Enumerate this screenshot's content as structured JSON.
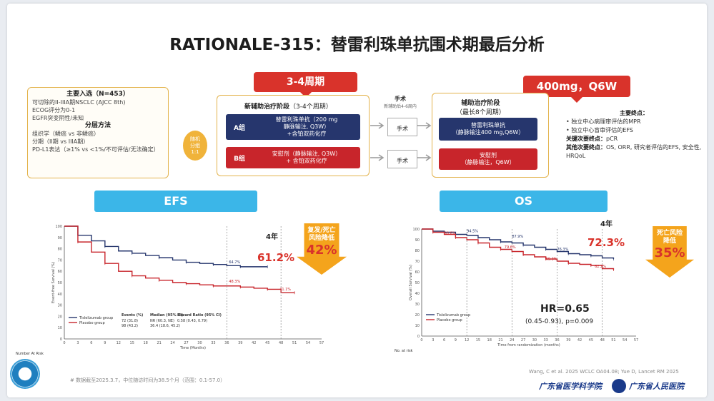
{
  "title": "RATIONALE-315：替雷利珠单抗围术期最后分析",
  "criteria": {
    "heading": "主要入选（N=453）",
    "items": [
      "可切除的II-IIIA期NSCLC (AJCC 8th)",
      "ECOG评分为0-1",
      "EGFR突变阴性/未知"
    ],
    "strat_heading": "分层方法",
    "strat_items": [
      "组织学（鳞癌 vs 非鳞癌）",
      "分期（II期 vs IIIA期）",
      "PD-L1表达（≥1% vs <1%/不可评估/无法确定）"
    ]
  },
  "randomize": "随机\n分组\n1:1",
  "neoadj": {
    "callout": "3-4周期",
    "title": "新辅助治疗阶段",
    "subtitle": "（3-4个周期）",
    "groupA_label": "A组",
    "groupA_text": "替雷利珠单抗（200 mg\n静脉输注, Q3W）\n+含铂双药化疗",
    "groupB_label": "B组",
    "groupB_text": "安慰剂（静脉输注, Q3W）\n+ 含铂双药化疗"
  },
  "surgery": {
    "title": "手术",
    "subtitle": "新辅助后4-6周内",
    "box": "手术"
  },
  "adj": {
    "callout": "400mg，Q6W",
    "title": "辅助治疗阶段",
    "subtitle": "（最长8个周期）",
    "groupA_text": "替雷利珠单抗\n（静脉输注400 mg,Q6W）",
    "groupB_text": "安慰剂\n（静脉输注，Q6W）"
  },
  "endpoints": {
    "primary_h": "主要终点：",
    "primary": [
      "独立中心病理审评估的MPR",
      "独立中心盲审评估的EFS"
    ],
    "key2_h": "关键次要终点：",
    "key2": "pCR",
    "other_h": "其他次要终点：",
    "other": "OS, ORR, 研究者评估的EFS, 安全性, HRQoL"
  },
  "efs": {
    "banner": "EFS",
    "year": "4年",
    "pct": "61.2%",
    "reduce_label": "复发/死亡\n风险降低",
    "reduce_value": "42%",
    "y_label": "Event-free Survival (%)",
    "x_label": "Time (Months)",
    "legend": [
      "Tislelizumab group",
      "Placebo group"
    ],
    "table_head": [
      "Events (%)",
      "Median (95% CI)",
      "Hazard Ratio (95% CI)"
    ],
    "row_t": [
      "72 (31.8)",
      "NR (60.3, NE)",
      "0.58 (0.43, 0.79)"
    ],
    "row_p": [
      "98 (43.2)",
      "36.4 (18.6, 45.2)",
      ""
    ],
    "risk_title": "Number At Risk",
    "labels": {
      "a": "64.7%",
      "b": "48.3%",
      "c": "41.1%"
    }
  },
  "os": {
    "banner": "OS",
    "year": "4年",
    "pct": "72.3%",
    "reduce_label": "死亡风险\n降低",
    "reduce_value": "35%",
    "hr": "HR=0.65",
    "ci": "(0.45-0.93), p=0.009",
    "y_label": "Overall Survival (%)",
    "x_label": "Time from randomization (months)",
    "legend": [
      "Tislelizumab group",
      "Placebo group"
    ],
    "risk_title": "No. at risk",
    "labels": {
      "a": "94.5%",
      "b": "87.9%",
      "c": "90.6%",
      "d": "79.6%",
      "e": "76.3%",
      "f": "69.3%",
      "g": "62.2%"
    }
  },
  "footnote": "# 数据截至2025.3.7，中位随访时间为38.5个月（范围：0.1-57.0）",
  "citation": "Wang, C et al. 2025 WCLC OA04.08; Yue D, Lancet RM 2025",
  "hospital_left": "广东省医学科学院",
  "hospital_right": "广东省人民医院",
  "chart_data": [
    {
      "type": "line",
      "title": "EFS",
      "xlabel": "Time (Months)",
      "ylabel": "Event-free Survival (%)",
      "xlim": [
        0,
        57
      ],
      "ylim": [
        0,
        100
      ],
      "x_ticks": [
        0,
        3,
        6,
        9,
        12,
        15,
        18,
        21,
        24,
        27,
        30,
        33,
        36,
        39,
        42,
        45,
        48,
        51,
        54,
        57
      ],
      "y_ticks": [
        0,
        10,
        20,
        30,
        40,
        50,
        60,
        70,
        80,
        90,
        100
      ],
      "series": [
        {
          "name": "Tislelizumab group",
          "x": [
            0,
            3,
            6,
            9,
            12,
            15,
            18,
            21,
            24,
            27,
            30,
            33,
            36,
            39,
            42,
            45
          ],
          "y": [
            100,
            92,
            87,
            82,
            78,
            76,
            74,
            72,
            70,
            68,
            67,
            66,
            65,
            64,
            64,
            64
          ]
        },
        {
          "name": "Placebo group",
          "x": [
            0,
            3,
            6,
            9,
            12,
            15,
            18,
            21,
            24,
            27,
            30,
            33,
            36,
            39,
            42,
            45,
            48,
            51
          ],
          "y": [
            100,
            86,
            77,
            67,
            60,
            56,
            54,
            52,
            50,
            49,
            48,
            47,
            47,
            46,
            45,
            44,
            41,
            41
          ]
        }
      ]
    },
    {
      "type": "line",
      "title": "OS",
      "xlabel": "Time from randomization (months)",
      "ylabel": "Overall Survival (%)",
      "xlim": [
        0,
        57
      ],
      "ylim": [
        0,
        100
      ],
      "x_ticks": [
        0,
        3,
        6,
        9,
        12,
        15,
        18,
        21,
        24,
        27,
        30,
        33,
        36,
        39,
        42,
        45,
        48,
        51,
        54,
        57
      ],
      "y_ticks": [
        0,
        10,
        20,
        30,
        40,
        50,
        60,
        70,
        80,
        90,
        100
      ],
      "series": [
        {
          "name": "Tislelizumab group",
          "x": [
            0,
            3,
            6,
            9,
            12,
            15,
            18,
            21,
            24,
            27,
            30,
            33,
            36,
            39,
            42,
            45,
            48,
            51
          ],
          "y": [
            100,
            98,
            97,
            95,
            94,
            92,
            90,
            88,
            87,
            85,
            83,
            81,
            79,
            77,
            76,
            75,
            73,
            72
          ]
        },
        {
          "name": "Placebo group",
          "x": [
            0,
            3,
            6,
            9,
            12,
            15,
            18,
            21,
            24,
            27,
            30,
            33,
            36,
            39,
            42,
            45,
            48,
            51
          ],
          "y": [
            100,
            97,
            95,
            92,
            90,
            87,
            83,
            81,
            79,
            76,
            74,
            72,
            70,
            68,
            67,
            66,
            63,
            62
          ]
        }
      ]
    }
  ]
}
